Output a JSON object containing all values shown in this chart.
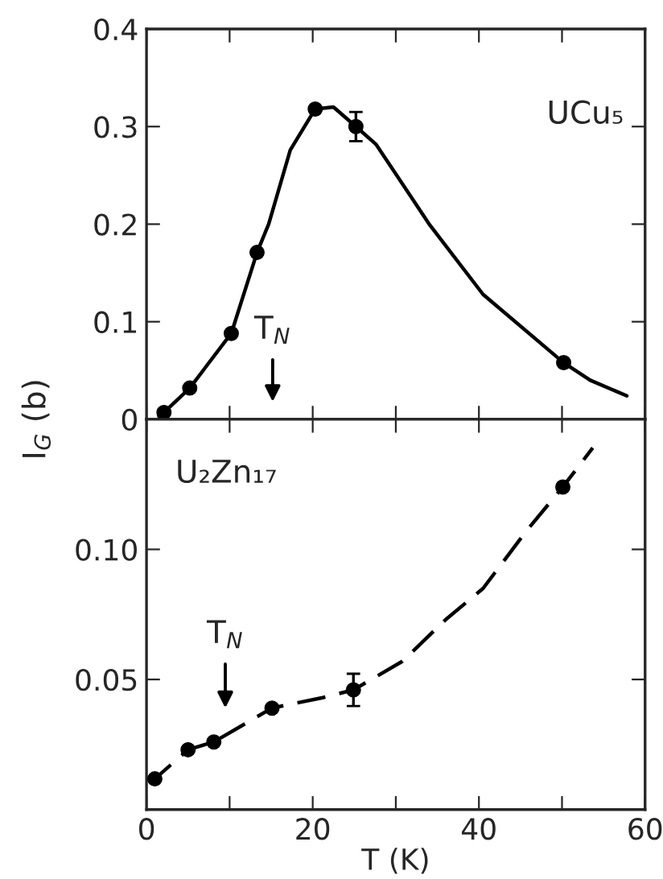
{
  "chart_data": [
    {
      "type": "scatter",
      "title": "UCu₅",
      "ylabel": "I$_{G}$ (b)",
      "xlim": [
        0,
        60
      ],
      "ylim": [
        0,
        0.4
      ],
      "xticks": [
        {
          "value": 0,
          "label": null
        },
        {
          "value": 10,
          "label": null
        },
        {
          "value": 20,
          "label": null
        },
        {
          "value": 30,
          "label": null
        },
        {
          "value": 40,
          "label": null
        },
        {
          "value": 50,
          "label": null
        },
        {
          "value": 60,
          "label": null
        }
      ],
      "yticks": [
        0,
        0.1,
        0.2,
        0.3,
        0.4
      ],
      "tick_labels": "y",
      "grid": false,
      "legend": false,
      "annotations": [
        "T$_{N}$"
      ],
      "series": [
        {
          "type": "line",
          "color": "#000000",
          "line_style": "solid",
          "marker": "none",
          "x": [
            1.5,
            2.1,
            5.2,
            10.2,
            13.3,
            14.7,
            17.3,
            20.3,
            22.5,
            25.2,
            27.6,
            34.1,
            40.5,
            50.2,
            53.4,
            57.8
          ],
          "values": [
            0.003,
            0.007,
            0.032,
            0.088,
            0.171,
            0.2,
            0.276,
            0.318,
            0.32,
            0.3,
            0.282,
            0.199,
            0.128,
            0.058,
            0.04,
            0.024
          ]
        },
        {
          "color": "#000000",
          "marker": "circle",
          "x": [
            2.1,
            5.2,
            10.2,
            13.3,
            20.3,
            25.2,
            50.2
          ],
          "values": [
            0.007,
            0.032,
            0.088,
            0.171,
            0.318,
            0.3,
            0.058
          ],
          "errors": [
            null,
            null,
            null,
            null,
            null,
            0.015,
            null
          ]
        }
      ]
    },
    {
      "type": "scatter",
      "title": "U₂Zn₁₇",
      "xlabel": "T (K)",
      "xlim": [
        0,
        60
      ],
      "ylim": [
        0,
        0.15
      ],
      "xticks": [
        0,
        {
          "value": 10,
          "label": null
        },
        20,
        {
          "value": 30,
          "label": null
        },
        40,
        {
          "value": 50,
          "label": null
        },
        60
      ],
      "yticks": [
        {
          "value": 0.05,
          "label": "0.05"
        },
        {
          "value": 0.1,
          "label": "0.10"
        }
      ],
      "grid": false,
      "legend": false,
      "annotations": [
        "T$_{N}$"
      ],
      "series": [
        {
          "type": "line",
          "color": "#000000",
          "line_style": "dashed",
          "marker": "none",
          "x": [
            0.2,
            1.0,
            5.0,
            8.1,
            15.1,
            21.2,
            24.9,
            30.8,
            36.0,
            40.5,
            45.7,
            50.1,
            53.7
          ],
          "values": [
            0.0106,
            0.0118,
            0.023,
            0.026,
            0.039,
            0.043,
            0.046,
            0.057,
            0.073,
            0.085,
            0.107,
            0.124,
            0.139
          ]
        },
        {
          "color": "#000000",
          "marker": "circle",
          "x": [
            1.0,
            5.0,
            8.1,
            15.1,
            24.9,
            50.1
          ],
          "values": [
            0.0118,
            0.023,
            0.026,
            0.039,
            0.046,
            0.124
          ],
          "errors": [
            null,
            null,
            null,
            null,
            0.0062,
            null
          ]
        }
      ]
    }
  ]
}
